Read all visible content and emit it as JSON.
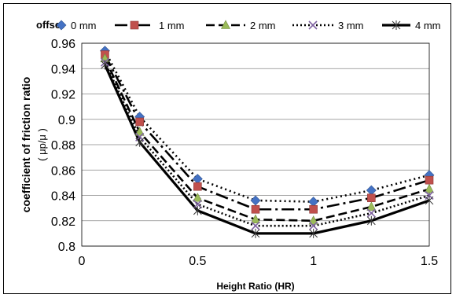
{
  "chart_data": {
    "type": "line",
    "xlabel": "Height Ratio (HR)",
    "ylabel": "coefficient of friction ratio",
    "ylabel_sub": "( μp/μ )",
    "xlim": [
      0,
      1.5
    ],
    "ylim": [
      0.8,
      0.96
    ],
    "x_ticks": [
      "0",
      "0.5",
      "1",
      "1.5"
    ],
    "y_ticks": [
      "0.8",
      "0.82",
      "0.84",
      "0.86",
      "0.88",
      "0.9",
      "0.92",
      "0.94",
      "0.96"
    ],
    "grid": "horizontal",
    "legend_position": "top",
    "legend_title": "offset",
    "x": [
      0.1,
      0.25,
      0.5,
      0.75,
      1.0,
      1.25,
      1.5
    ],
    "series": [
      {
        "name": "0 mm",
        "values": [
          0.954,
          0.902,
          0.853,
          0.836,
          0.835,
          0.844,
          0.856
        ],
        "color": "#4472C4",
        "marker": "diamond",
        "dash": "2,4"
      },
      {
        "name": "1 mm",
        "values": [
          0.951,
          0.898,
          0.847,
          0.829,
          0.829,
          0.838,
          0.852
        ],
        "color": "#C0504D",
        "marker": "square",
        "dash": "16,5,3,5"
      },
      {
        "name": "2 mm",
        "values": [
          0.948,
          0.89,
          0.838,
          0.821,
          0.82,
          0.831,
          0.845
        ],
        "color": "#9BBB59",
        "marker": "triangle",
        "dash": "11,5"
      },
      {
        "name": "3 mm",
        "values": [
          0.945,
          0.886,
          0.833,
          0.816,
          0.816,
          0.826,
          0.84
        ],
        "color": "#8064A2",
        "marker": "x",
        "dash": "2,3"
      },
      {
        "name": "4 mm",
        "values": [
          0.943,
          0.882,
          0.828,
          0.81,
          0.81,
          0.82,
          0.836
        ],
        "color": "#000000",
        "marker": "star",
        "dash": ""
      }
    ]
  }
}
